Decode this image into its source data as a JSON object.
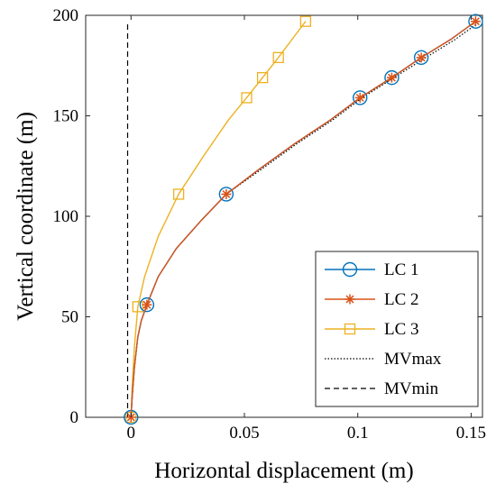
{
  "chart_data": {
    "type": "line",
    "xlabel": "Horizontal displacement (m)",
    "ylabel": "Vertical coordinate (m)",
    "xlim": [
      -0.02,
      0.155
    ],
    "ylim": [
      0,
      200
    ],
    "xticks": [
      0,
      0.05,
      0.1,
      0.15
    ],
    "xtick_labels": [
      "0",
      "0.05",
      "0.1",
      "0.15"
    ],
    "yticks": [
      0,
      50,
      100,
      150,
      200
    ],
    "ytick_labels": [
      "0",
      "50",
      "100",
      "150",
      "200"
    ],
    "grid": false,
    "legend_position": "bottom-right",
    "series": [
      {
        "name": "LC 1",
        "color": "#0072BD",
        "marker": "circle",
        "line": "solid",
        "x": [
          0,
          0.0005,
          0.0015,
          0.003,
          0.0045,
          0.007,
          0.012,
          0.02,
          0.031,
          0.042,
          0.056,
          0.072,
          0.088,
          0.101,
          0.115,
          0.128,
          0.141,
          0.152
        ],
        "y": [
          0,
          10,
          25,
          40,
          48,
          56,
          70,
          84,
          98,
          111,
          123,
          136,
          148,
          159,
          169,
          179,
          188,
          197
        ],
        "marker_x": [
          0,
          0.007,
          0.042,
          0.101,
          0.115,
          0.128,
          0.152
        ],
        "marker_y": [
          0,
          56,
          111,
          159,
          169,
          179,
          197
        ]
      },
      {
        "name": "LC 2",
        "color": "#D95319",
        "marker": "asterisk",
        "line": "solid",
        "x": [
          0,
          0.0005,
          0.0015,
          0.003,
          0.0045,
          0.007,
          0.012,
          0.02,
          0.031,
          0.042,
          0.056,
          0.072,
          0.088,
          0.101,
          0.115,
          0.128,
          0.141,
          0.152
        ],
        "y": [
          0,
          10,
          25,
          40,
          48,
          56,
          70,
          84,
          98,
          111,
          123,
          136,
          148,
          159,
          169,
          179,
          188,
          197
        ],
        "marker_x": [
          0,
          0.007,
          0.042,
          0.101,
          0.115,
          0.128,
          0.152
        ],
        "marker_y": [
          0,
          56,
          111,
          159,
          169,
          179,
          197
        ]
      },
      {
        "name": "LC 3",
        "color": "#EDB120",
        "marker": "square",
        "line": "solid",
        "x": [
          0,
          0.0005,
          0.0015,
          0.003,
          0.006,
          0.012,
          0.021,
          0.032,
          0.043,
          0.051,
          0.058,
          0.065,
          0.071,
          0.077
        ],
        "y": [
          0,
          15,
          35,
          55,
          70,
          90,
          111,
          130,
          148,
          159,
          169,
          179,
          188,
          197
        ],
        "marker_x": [
          0,
          0.003,
          0.021,
          0.051,
          0.058,
          0.065,
          0.077
        ],
        "marker_y": [
          0,
          55,
          111,
          159,
          169,
          179,
          197
        ]
      },
      {
        "name": "MVmax",
        "color": "#000000",
        "marker": "none",
        "line": "dotted",
        "x": [
          0,
          0.0005,
          0.0015,
          0.003,
          0.0045,
          0.007,
          0.012,
          0.02,
          0.031,
          0.042,
          0.057,
          0.073,
          0.089,
          0.102,
          0.116,
          0.13,
          0.143,
          0.154
        ],
        "y": [
          0,
          10,
          25,
          40,
          48,
          56,
          70,
          84,
          98,
          111,
          123,
          136,
          148,
          159,
          169,
          179,
          188,
          197
        ]
      },
      {
        "name": "MVmin",
        "color": "#000000",
        "marker": "none",
        "line": "dashed",
        "x": [
          -0.0015,
          -0.0015
        ],
        "y": [
          0,
          197
        ]
      }
    ]
  }
}
